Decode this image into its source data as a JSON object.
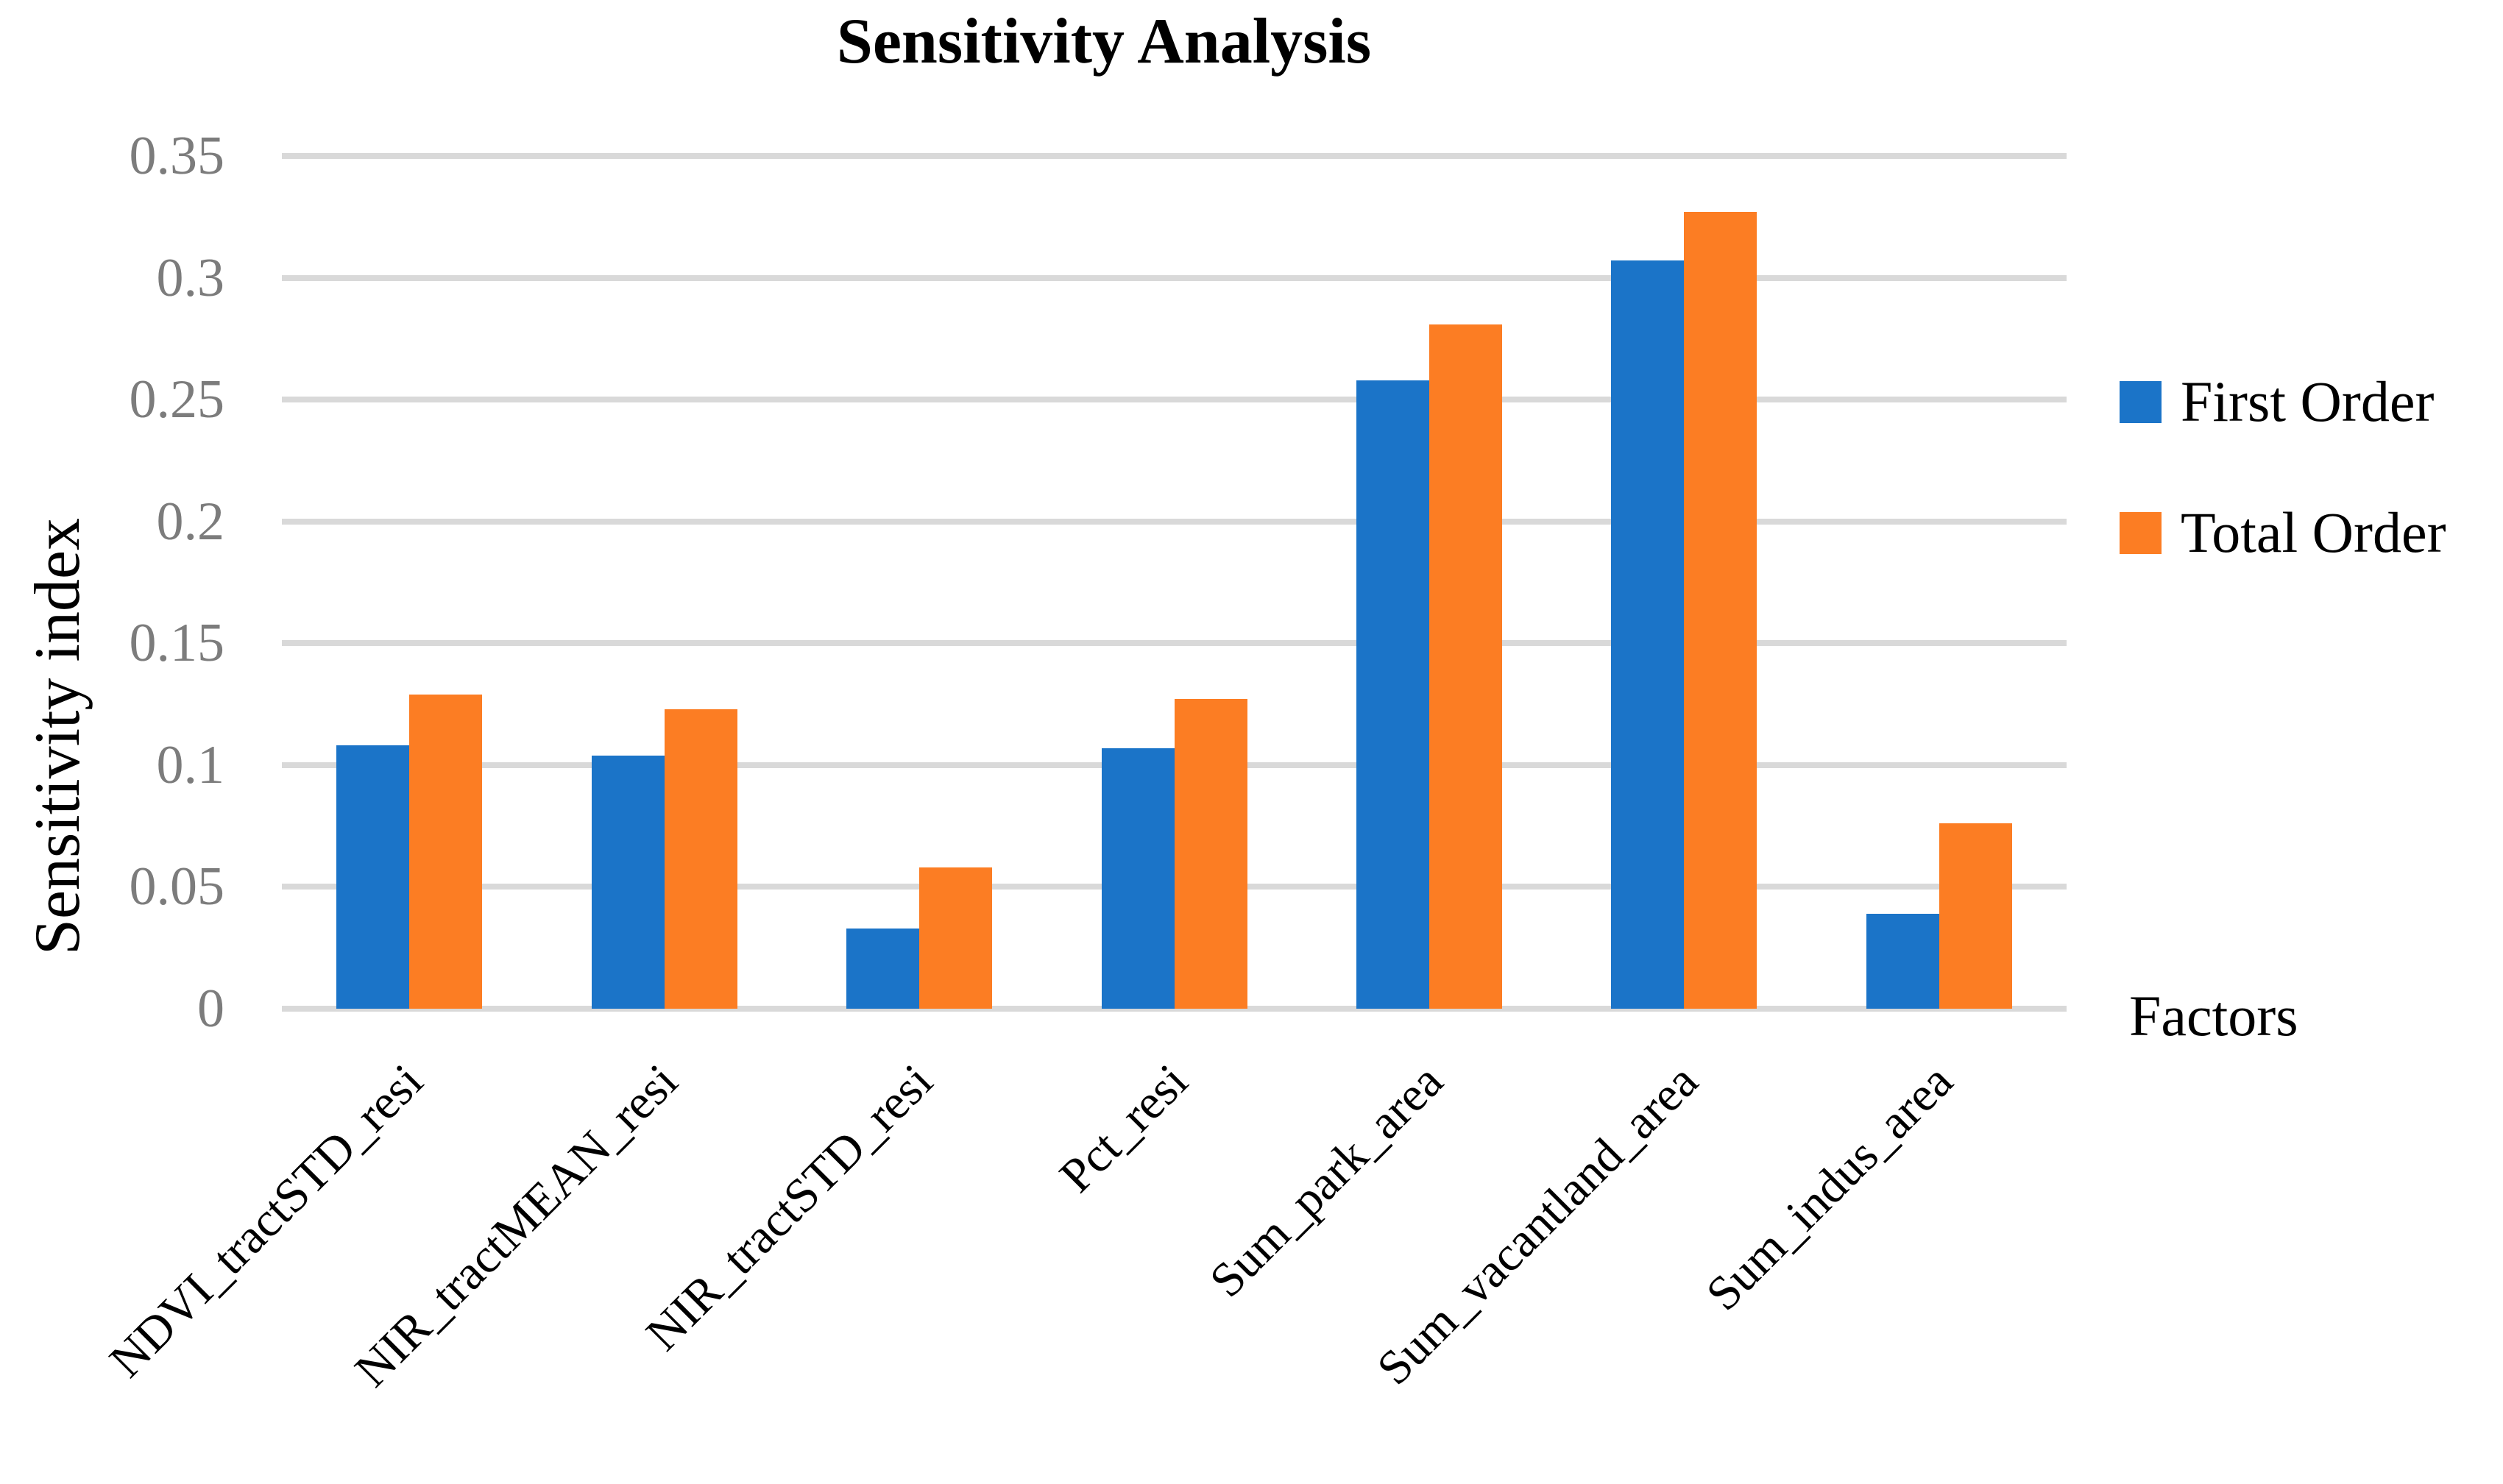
{
  "chart_data": {
    "type": "bar",
    "title": "Sensitivity Analysis",
    "ylabel": "Sensitivity index",
    "xlabel": "Factors",
    "categories": [
      "NDVI_tractSTD_resi",
      "NIR_tractMEAN_resi",
      "NIR_tractSTD_resi",
      "Pct_resi",
      "Sum_park_area",
      "Sum_vacantland_area",
      "Sum_indus_area"
    ],
    "series": [
      {
        "name": "First Order",
        "color": "#1B74C8",
        "values": [
          0.108,
          0.104,
          0.033,
          0.107,
          0.258,
          0.307,
          0.039
        ]
      },
      {
        "name": "Total Order",
        "color": "#FC7D23",
        "values": [
          0.129,
          0.123,
          0.058,
          0.127,
          0.281,
          0.327,
          0.076
        ]
      }
    ],
    "ylim": [
      0,
      0.35
    ],
    "yticks": [
      "0",
      "0.05",
      "0.1",
      "0.15",
      "0.2",
      "0.25",
      "0.3",
      "0.35"
    ],
    "grid": true,
    "legend_position": "right"
  },
  "colors": {
    "gridline": "#D9D9D9",
    "tick_label": "#7C7C7C",
    "text": "#000000",
    "background": "#FFFFFF"
  }
}
